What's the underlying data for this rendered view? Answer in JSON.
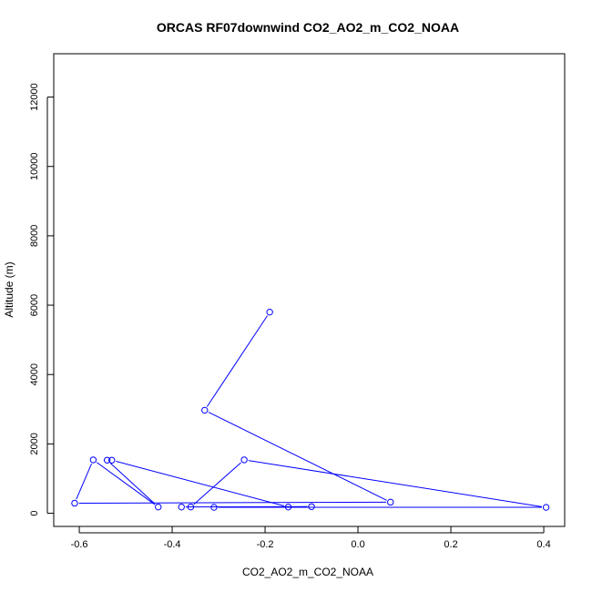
{
  "chart_data": {
    "type": "line",
    "title": "ORCAS RF07downwind CO2_AO2_m_CO2_NOAA",
    "xlabel": "CO2_AO2_m_CO2_NOAA",
    "ylabel": "Altitude (m)",
    "xlim": [
      -0.655,
      0.445
    ],
    "ylim": [
      -380,
      13250
    ],
    "xticks": [
      -0.6,
      -0.4,
      -0.2,
      0.0,
      0.2,
      0.4
    ],
    "xtick_labels": [
      "-0.6",
      "-0.4",
      "-0.2",
      "0.0",
      "0.2",
      "0.4"
    ],
    "yticks": [
      0,
      2000,
      4000,
      6000,
      8000,
      10000,
      12000
    ],
    "ytick_labels": [
      "0",
      "2000",
      "4000",
      "6000",
      "8000",
      "10000",
      "12000"
    ],
    "grid": false,
    "marker": "open-circle",
    "series": [
      {
        "color": "#0000ff",
        "x": [
          -0.19,
          -0.33,
          0.07,
          -0.61,
          -0.57,
          -0.43,
          -0.54,
          -0.53,
          -0.15,
          -0.1,
          -0.38,
          -0.36,
          -0.245,
          0.405,
          -0.31
        ],
        "y": [
          5800,
          2970,
          320,
          290,
          1540,
          180,
          1530,
          1530,
          180,
          190,
          180,
          180,
          1540,
          170,
          170
        ]
      }
    ]
  }
}
